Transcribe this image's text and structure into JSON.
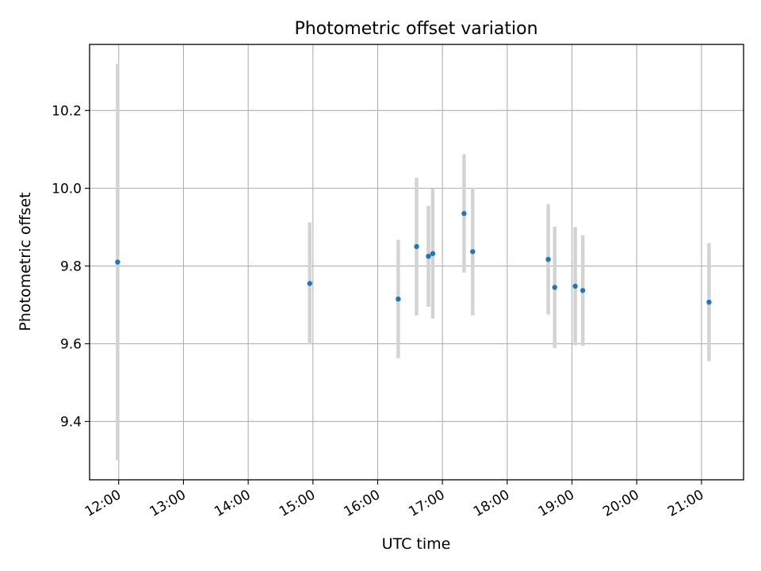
{
  "chart_data": {
    "type": "scatter",
    "title": "Photometric offset variation",
    "xlabel": "UTC time",
    "ylabel": "Photometric offset",
    "xlim": [
      "11:33",
      "21:39"
    ],
    "ylim": [
      9.25,
      10.37
    ],
    "grid": true,
    "legend": "none",
    "x_ticks": [
      "12:00",
      "13:00",
      "14:00",
      "15:00",
      "16:00",
      "17:00",
      "18:00",
      "19:00",
      "20:00",
      "21:00"
    ],
    "y_ticks": [
      "9.4",
      "9.6",
      "9.8",
      "10.0",
      "10.2"
    ],
    "series": [
      {
        "marker_color": "#1f77b4",
        "errorbar_color": "#d3d3d3",
        "points": [
          {
            "x": "11:59",
            "y": 9.81,
            "yerr": 0.51
          },
          {
            "x": "14:57",
            "y": 9.755,
            "yerr": 0.157
          },
          {
            "x": "16:19",
            "y": 9.715,
            "yerr": 0.152
          },
          {
            "x": "16:36",
            "y": 9.85,
            "yerr": 0.177
          },
          {
            "x": "16:47",
            "y": 9.825,
            "yerr": 0.13
          },
          {
            "x": "16:51",
            "y": 9.832,
            "yerr": 0.167
          },
          {
            "x": "17:20",
            "y": 9.935,
            "yerr": 0.152
          },
          {
            "x": "17:28",
            "y": 9.837,
            "yerr": 0.164
          },
          {
            "x": "18:38",
            "y": 9.817,
            "yerr": 0.142
          },
          {
            "x": "18:44",
            "y": 9.745,
            "yerr": 0.156
          },
          {
            "x": "19:03",
            "y": 9.748,
            "yerr": 0.152
          },
          {
            "x": "19:10",
            "y": 9.737,
            "yerr": 0.142
          },
          {
            "x": "21:07",
            "y": 9.707,
            "yerr": 0.152
          }
        ]
      }
    ]
  }
}
